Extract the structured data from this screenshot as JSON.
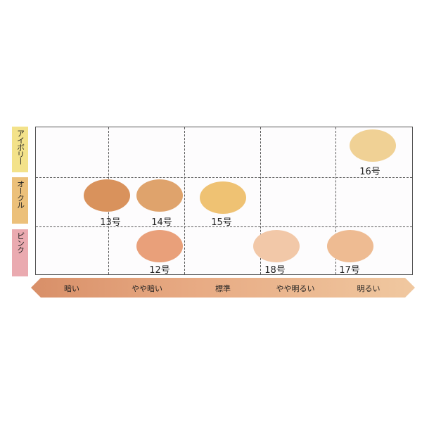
{
  "rows": [
    {
      "label": "アイボリー",
      "color": "#f3e28a"
    },
    {
      "label": "オークル",
      "color": "#ecc07a"
    },
    {
      "label": "ピンク",
      "color": "#eaaab0"
    }
  ],
  "shades": [
    {
      "label": "13号",
      "row": "オークル",
      "column": "暗い〜やや暗い",
      "color": "#d9925c"
    },
    {
      "label": "14号",
      "row": "オークル",
      "column": "やや暗い",
      "color": "#dfa36c"
    },
    {
      "label": "15号",
      "row": "オークル",
      "column": "標準",
      "color": "#efc273"
    },
    {
      "label": "16号",
      "row": "アイボリー",
      "column": "明るい",
      "color": "#f0d195"
    },
    {
      "label": "12号",
      "row": "ピンク",
      "column": "やや暗い",
      "color": "#e9a07a"
    },
    {
      "label": "18号",
      "row": "ピンク",
      "column": "標準〜やや明るい",
      "color": "#f2c8a8"
    },
    {
      "label": "17号",
      "row": "ピンク",
      "column": "やや明るい〜明るい",
      "color": "#eebb92"
    }
  ],
  "scale": [
    "暗い",
    "やや暗い",
    "標準",
    "やや明るい",
    "明るい"
  ]
}
